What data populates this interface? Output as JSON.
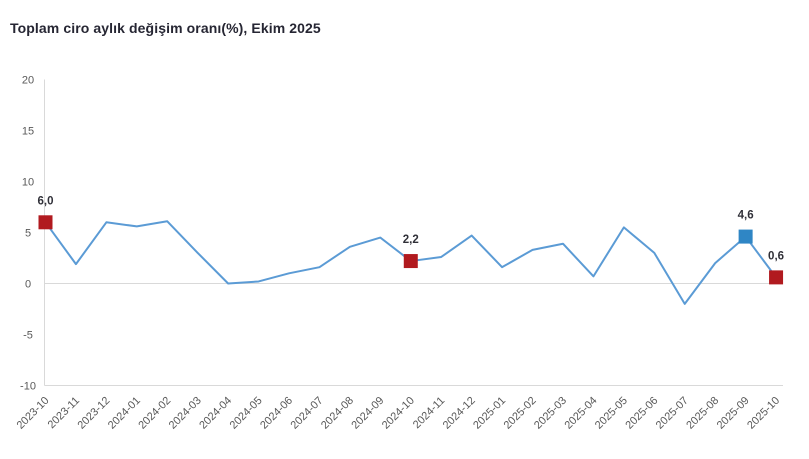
{
  "title": "Toplam ciro aylık değişim oranı(%), Ekim 2025",
  "colors": {
    "line": "#5B9BD5",
    "marker_red": "#B11A1F",
    "marker_blue": "#2F86C5",
    "axis_text": "#595959",
    "grid_line": "#D9D9D9",
    "title_text": "#262633",
    "data_label_text": "#303038",
    "background": "#FFFFFF"
  },
  "chart_data": {
    "type": "line",
    "title": "Toplam ciro aylık değişim oranı(%), Ekim 2025",
    "xlabel": "",
    "ylabel": "",
    "x": [
      "2023-10",
      "2023-11",
      "2023-12",
      "2024-01",
      "2024-02",
      "2024-03",
      "2024-04",
      "2024-05",
      "2024-06",
      "2024-07",
      "2024-08",
      "2024-09",
      "2024-10",
      "2024-11",
      "2024-12",
      "2025-01",
      "2025-02",
      "2025-03",
      "2025-04",
      "2025-05",
      "2025-06",
      "2025-07",
      "2025-08",
      "2025-09",
      "2025-10"
    ],
    "values": [
      6.0,
      1.9,
      6.0,
      5.6,
      6.1,
      3.0,
      0.0,
      0.2,
      1.0,
      1.6,
      3.6,
      4.5,
      2.2,
      2.6,
      4.7,
      1.6,
      3.3,
      3.9,
      0.7,
      5.5,
      3.0,
      -2.0,
      2.0,
      4.6,
      0.6
    ],
    "ylim": [
      -10,
      20
    ],
    "yticks": [
      20,
      15,
      10,
      5,
      0,
      -5,
      -10
    ],
    "grid": "zero-baseline and bottom border only, no vertical gridlines",
    "legend": "none",
    "x_tick_rotation_deg": 45,
    "marked_points": [
      {
        "index": 0,
        "x": "2023-10",
        "label": "6,0",
        "color": "red"
      },
      {
        "index": 12,
        "x": "2024-10",
        "label": "2,2",
        "color": "red"
      },
      {
        "index": 23,
        "x": "2025-09",
        "label": "4,6",
        "color": "blue"
      },
      {
        "index": 24,
        "x": "2025-10",
        "label": "0,6",
        "color": "red"
      }
    ]
  }
}
